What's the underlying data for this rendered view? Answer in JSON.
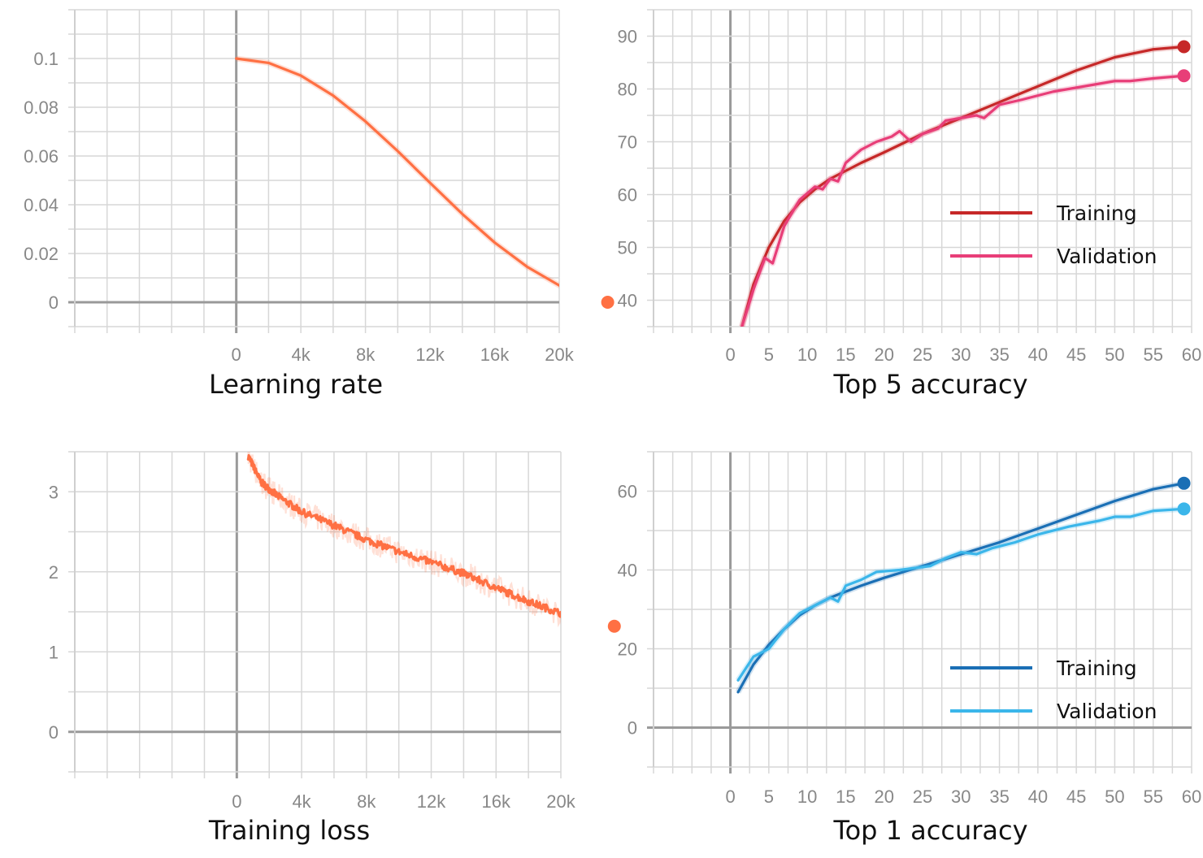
{
  "chart_data": [
    {
      "type": "line",
      "title": "Learning rate",
      "xlim": [
        -10000,
        20000
      ],
      "ylim": [
        -0.01,
        0.12
      ],
      "xticks": [
        0,
        4000,
        8000,
        12000,
        16000,
        20000
      ],
      "xtick_labels": [
        "0",
        "4k",
        "8k",
        "12k",
        "16k",
        "20k"
      ],
      "yticks": [
        0,
        0.02,
        0.04,
        0.06,
        0.08,
        0.1
      ],
      "ytick_labels": [
        "0",
        "0.02",
        "0.04",
        "0.06",
        "0.08",
        "0.1"
      ],
      "series": [
        {
          "color": "#ff7043",
          "end_marker": true,
          "x": [
            0,
            2000,
            4000,
            6000,
            8000,
            10000,
            12000,
            14000,
            16000,
            18000,
            20000,
            22000,
            23000
          ],
          "y": [
            0.1,
            0.0982,
            0.093,
            0.0848,
            0.0742,
            0.062,
            0.049,
            0.0362,
            0.0245,
            0.0146,
            0.0069,
            0.0016,
            0
          ]
        }
      ]
    },
    {
      "type": "line",
      "title": "Top 5 accuracy",
      "xlim": [
        -10,
        60
      ],
      "ylim": [
        35,
        95
      ],
      "xticks": [
        0,
        5,
        10,
        15,
        20,
        25,
        30,
        35,
        40,
        45,
        50,
        55,
        60
      ],
      "xtick_labels": [
        "0",
        "5",
        "10",
        "15",
        "20",
        "25",
        "30",
        "35",
        "40",
        "45",
        "50",
        "55",
        "60"
      ],
      "yticks": [
        40,
        50,
        60,
        70,
        80,
        90
      ],
      "ytick_labels": [
        "40",
        "50",
        "60",
        "70",
        "80",
        "90"
      ],
      "legend": {
        "position": "center-right",
        "entries": [
          {
            "label": "Training",
            "color": "#c62828"
          },
          {
            "label": "Validation",
            "color": "#e83e78"
          }
        ]
      },
      "series": [
        {
          "name": "Training",
          "color": "#c62828",
          "end_marker": true,
          "x": [
            1.5,
            3,
            5,
            7,
            9,
            11,
            13,
            15,
            17,
            20,
            25,
            30,
            35,
            40,
            45,
            50,
            55,
            59
          ],
          "y": [
            35,
            43,
            50,
            55,
            58.5,
            61,
            63,
            64.5,
            66,
            68,
            71.5,
            74.5,
            77.5,
            80.5,
            83.5,
            86,
            87.5,
            88
          ]
        },
        {
          "name": "Validation",
          "color": "#e83e78",
          "end_marker": true,
          "x": [
            1.5,
            3,
            4.5,
            5.5,
            7,
            9,
            11,
            12,
            13,
            14,
            15,
            17,
            19,
            21,
            22,
            23.5,
            25,
            27,
            28,
            30,
            32,
            33,
            35,
            38,
            42,
            46,
            50,
            52,
            55,
            59
          ],
          "y": [
            35,
            42,
            48,
            47,
            54,
            59,
            61.5,
            61,
            63,
            62.5,
            66,
            68.5,
            70,
            71,
            72,
            70,
            71.5,
            72.5,
            74,
            74.5,
            75,
            74.5,
            77,
            78,
            79.5,
            80.5,
            81.5,
            81.5,
            82,
            82.5
          ]
        }
      ]
    },
    {
      "type": "line",
      "title": "Training loss",
      "xlim": [
        -10000,
        20000
      ],
      "ylim": [
        -0.5,
        3.5
      ],
      "xticks": [
        0,
        4000,
        8000,
        12000,
        16000,
        20000
      ],
      "xtick_labels": [
        "0",
        "4k",
        "8k",
        "12k",
        "16k",
        "20k"
      ],
      "yticks": [
        0,
        1,
        2,
        3
      ],
      "ytick_labels": [
        "0",
        "1",
        "2",
        "3"
      ],
      "series": [
        {
          "color": "#ff7043",
          "end_marker": true,
          "noisy": true,
          "x": [
            700,
            1500,
            2500,
            4000,
            6000,
            8000,
            10000,
            12000,
            14000,
            16000,
            18000,
            20000,
            22000,
            23300
          ],
          "y": [
            3.45,
            3.12,
            2.95,
            2.75,
            2.58,
            2.4,
            2.25,
            2.12,
            1.98,
            1.8,
            1.63,
            1.48,
            1.36,
            1.32
          ]
        }
      ]
    },
    {
      "type": "line",
      "title": "Top 1 accuracy",
      "xlim": [
        -10,
        60
      ],
      "ylim": [
        -10,
        70
      ],
      "xticks": [
        0,
        5,
        10,
        15,
        20,
        25,
        30,
        35,
        40,
        45,
        50,
        55,
        60
      ],
      "xtick_labels": [
        "0",
        "5",
        "10",
        "15",
        "20",
        "25",
        "30",
        "35",
        "40",
        "45",
        "50",
        "55",
        "60"
      ],
      "yticks": [
        0,
        20,
        40,
        60
      ],
      "ytick_labels": [
        "0",
        "20",
        "40",
        "60"
      ],
      "legend": {
        "position": "bottom-right",
        "entries": [
          {
            "label": "Training",
            "color": "#1a6fb5"
          },
          {
            "label": "Validation",
            "color": "#3bb6ea"
          }
        ]
      },
      "series": [
        {
          "name": "Training",
          "color": "#1a6fb5",
          "end_marker": true,
          "x": [
            1,
            3,
            5,
            7,
            9,
            11,
            13,
            15,
            17,
            20,
            25,
            30,
            35,
            40,
            45,
            50,
            55,
            59
          ],
          "y": [
            9,
            16,
            21,
            25,
            28.5,
            31,
            33,
            34.5,
            36,
            38,
            41,
            44,
            47,
            50.5,
            54,
            57.5,
            60.5,
            62
          ]
        },
        {
          "name": "Validation",
          "color": "#3bb6ea",
          "end_marker": true,
          "x": [
            1,
            3,
            5,
            7,
            9,
            11,
            13,
            14,
            15,
            17,
            19,
            22,
            24,
            26,
            28,
            30,
            32,
            34,
            37,
            40,
            44,
            48,
            50,
            52,
            55,
            59
          ],
          "y": [
            12,
            18,
            20,
            25,
            29,
            31,
            33,
            32,
            36,
            37.5,
            39.5,
            40,
            40.5,
            41,
            43,
            44.5,
            44,
            45.5,
            47,
            49,
            51,
            52.5,
            53.5,
            53.5,
            55,
            55.5
          ]
        }
      ]
    }
  ]
}
